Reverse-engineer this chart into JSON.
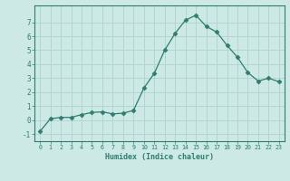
{
  "xlabel": "Humidex (Indice chaleur)",
  "x_values": [
    0,
    1,
    2,
    3,
    4,
    5,
    6,
    7,
    8,
    9,
    10,
    11,
    12,
    13,
    14,
    15,
    16,
    17,
    18,
    19,
    20,
    21,
    22,
    23
  ],
  "y_values": [
    -0.8,
    0.1,
    0.2,
    0.2,
    0.4,
    0.55,
    0.6,
    0.45,
    0.5,
    0.7,
    2.3,
    3.35,
    5.0,
    6.2,
    7.15,
    7.5,
    6.7,
    6.3,
    5.35,
    4.5,
    3.4,
    2.8,
    3.0,
    2.75
  ],
  "line_color": "#2e7d6e",
  "marker": "D",
  "marker_size": 2.5,
  "bg_color": "#cce9e6",
  "grid_color": "#add4d0",
  "axis_color": "#2e7d6e",
  "text_color": "#2e7d6e",
  "ylim": [
    -1.5,
    8.2
  ],
  "xlim": [
    -0.5,
    23.5
  ],
  "yticks": [
    -1,
    0,
    1,
    2,
    3,
    4,
    5,
    6,
    7
  ],
  "xticks": [
    0,
    1,
    2,
    3,
    4,
    5,
    6,
    7,
    8,
    9,
    10,
    11,
    12,
    13,
    14,
    15,
    16,
    17,
    18,
    19,
    20,
    21,
    22,
    23
  ]
}
